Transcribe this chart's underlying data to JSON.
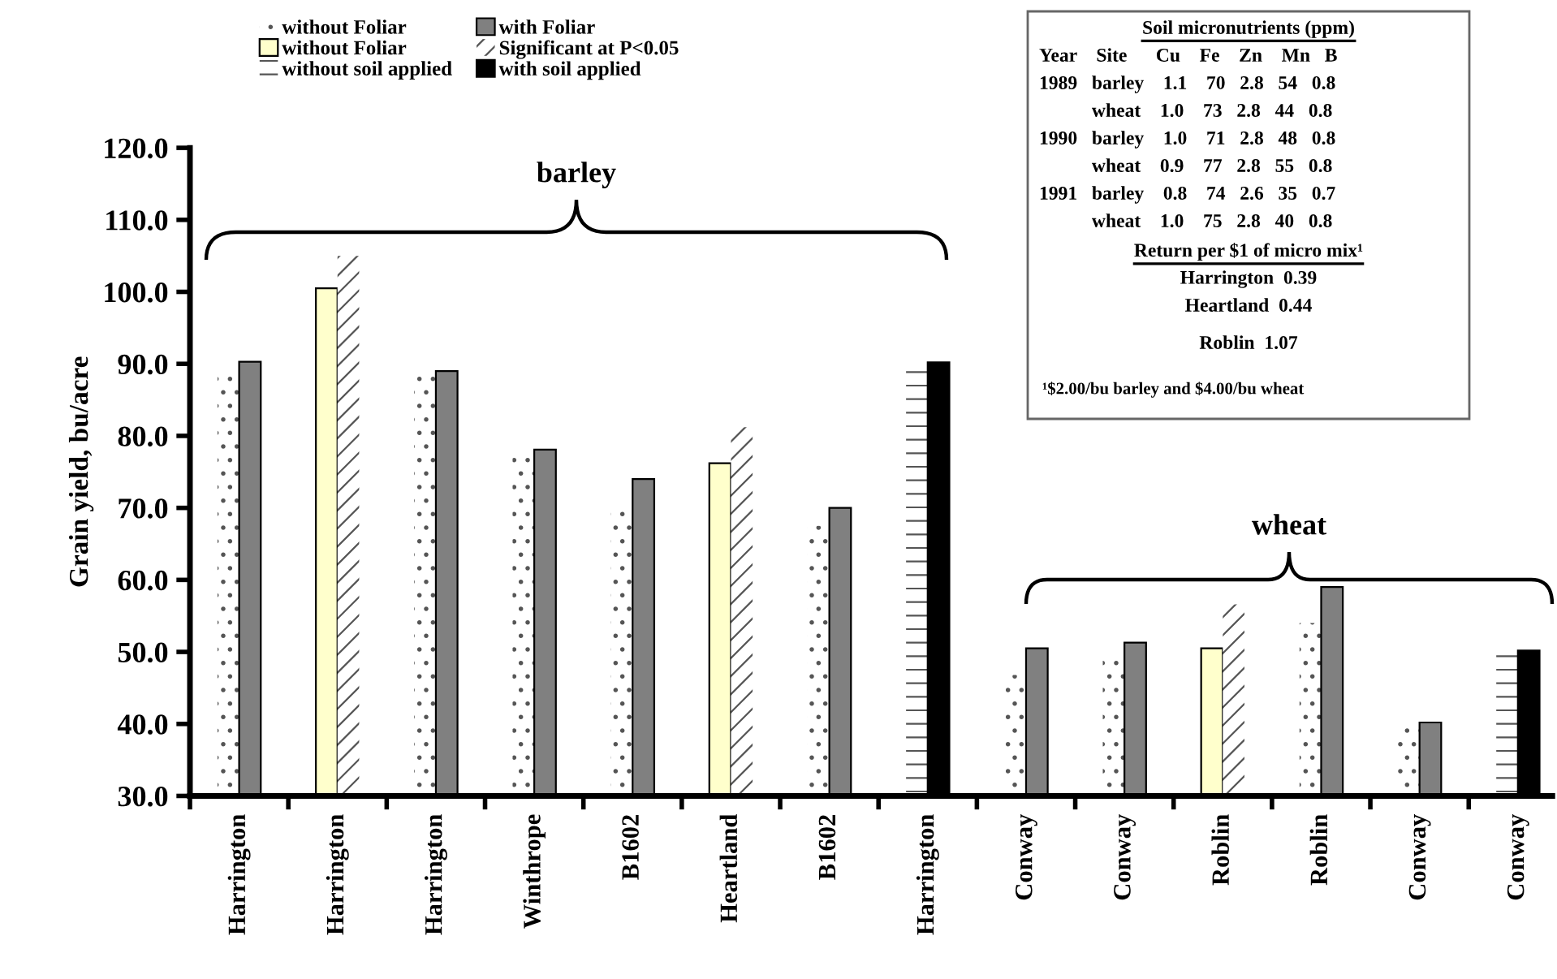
{
  "chart_data": {
    "type": "bar",
    "ylabel": "Grain yield, bu/acre",
    "categories": [
      "Harrington",
      "Harrington",
      "Harrington",
      "Winthrope",
      "B1602",
      "Heartland",
      "B1602",
      "Harrington",
      "Conway",
      "Conway",
      "Roblin",
      "Roblin",
      "Conway",
      "Conway"
    ],
    "series": [
      {
        "name": "without Foliar",
        "color": "#ffffff",
        "values": [
          89.0,
          null,
          88.3,
          77.3,
          70.1,
          null,
          67.5,
          null,
          46.8,
          49.2,
          null,
          54.0,
          39.6,
          null
        ]
      },
      {
        "name": "with Foliar",
        "color": "#808080",
        "values": [
          90.3,
          null,
          89.0,
          78.1,
          74.0,
          null,
          70.0,
          null,
          50.5,
          51.3,
          null,
          59.0,
          40.2,
          null
        ]
      },
      {
        "name": "without Foliar",
        "color": "#ffffcc",
        "values": [
          null,
          100.5,
          null,
          null,
          null,
          76.2,
          null,
          null,
          null,
          null,
          50.5,
          null,
          null,
          null
        ]
      },
      {
        "name": "Significant at P<0.05",
        "color": "#ffffff",
        "values": [
          null,
          105.0,
          null,
          null,
          null,
          81.2,
          null,
          null,
          null,
          null,
          56.6,
          null,
          null,
          null
        ]
      },
      {
        "name": "without soil applied",
        "color": "#ffffff",
        "values": [
          null,
          null,
          null,
          null,
          null,
          null,
          null,
          89.0,
          null,
          null,
          null,
          null,
          null,
          50.2
        ]
      },
      {
        "name": "with soil applied",
        "color": "#000000",
        "values": [
          null,
          null,
          null,
          null,
          null,
          null,
          null,
          90.2,
          null,
          null,
          null,
          null,
          null,
          50.2
        ]
      }
    ],
    "ylim": [
      30,
      120
    ],
    "yticks": [
      {
        "value": 30,
        "label": "30.0"
      },
      {
        "value": 40,
        "label": "40.0"
      },
      {
        "value": 50,
        "label": "50.0"
      },
      {
        "value": 60,
        "label": "60.0"
      },
      {
        "value": 70,
        "label": "70.0"
      },
      {
        "value": 80,
        "label": "80.0"
      },
      {
        "value": 90,
        "label": "90.0"
      },
      {
        "value": 100,
        "label": "100.0"
      },
      {
        "value": 110,
        "label": "110.0"
      },
      {
        "value": 120,
        "label": "120.0"
      }
    ],
    "grid": false,
    "legend": "top left",
    "annotations": [
      "barley",
      "wheat",
      "Soil micronutrients (ppm)",
      "Year    Site      Cu    Fe    Zn    Mn   B",
      "1989   barley    1.1    70   2.8   54   0.8",
      "           wheat    1.0    73   2.8   44   0.8",
      "1990   barley    1.0    71   2.8   48   0.8",
      "           wheat    0.9    77   2.8   55   0.8",
      "1991   barley    0.8    74   2.6   35   0.7",
      "           wheat    1.0    75   2.8   40   0.8",
      "Return per $1 of micro mix¹",
      "Harrington  0.39",
      "Heartland  0.44",
      "Roblin  1.07",
      "¹$2.00/bu barley and $4.00/bu wheat"
    ]
  }
}
